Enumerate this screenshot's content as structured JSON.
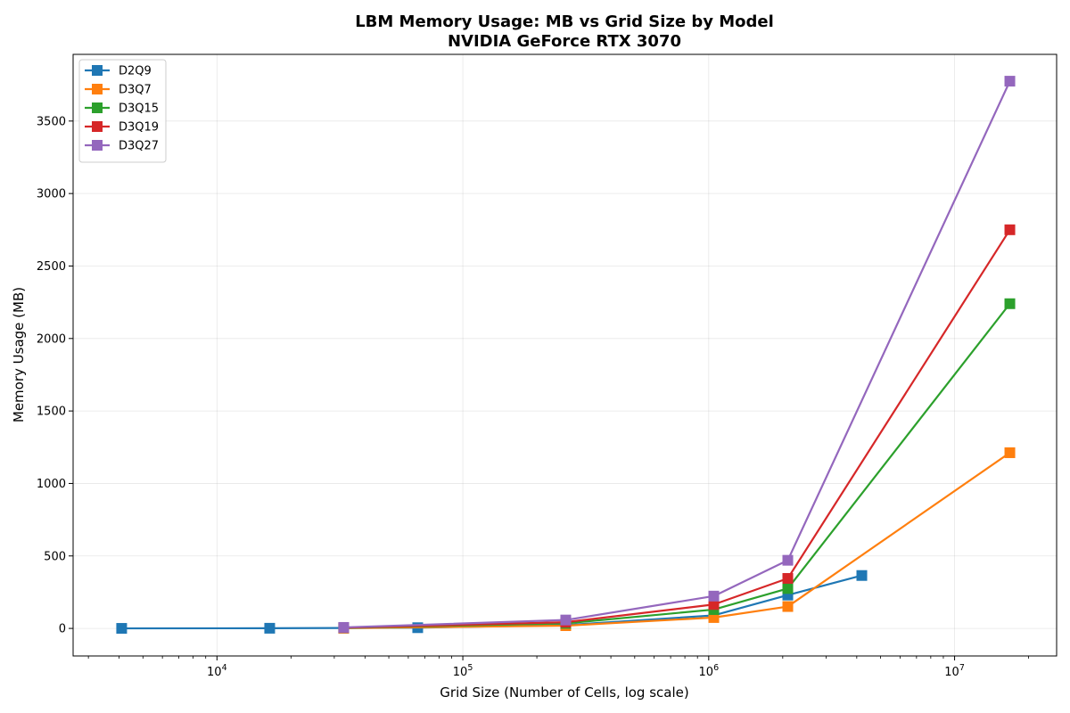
{
  "chart_data": {
    "type": "line",
    "title": "LBM Memory Usage: MB vs Grid Size by Model",
    "subtitle": "NVIDIA GeForce RTX 3070",
    "xlabel": "Grid Size (Number of Cells, log scale)",
    "ylabel": "Memory Usage (MB)",
    "x_scale": "log",
    "xlim": [
      2600,
      26000000
    ],
    "ylim": [
      -190,
      3960
    ],
    "x_ticks": [
      {
        "value": 10000,
        "base": "10",
        "exp": "4"
      },
      {
        "value": 100000,
        "base": "10",
        "exp": "5"
      },
      {
        "value": 1000000,
        "base": "10",
        "exp": "6"
      },
      {
        "value": 10000000,
        "base": "10",
        "exp": "7"
      }
    ],
    "y_ticks": [
      {
        "value": 0,
        "label": "0"
      },
      {
        "value": 500,
        "label": "500"
      },
      {
        "value": 1000,
        "label": "1000"
      },
      {
        "value": 1500,
        "label": "1500"
      },
      {
        "value": 2000,
        "label": "2000"
      },
      {
        "value": 2500,
        "label": "2500"
      },
      {
        "value": 3000,
        "label": "3000"
      },
      {
        "value": 3500,
        "label": "3500"
      }
    ],
    "grid": true,
    "legend_position": "top-left",
    "series": [
      {
        "name": "D2Q9",
        "color": "#1f77b4",
        "points": [
          [
            4096,
            0.3
          ],
          [
            16384,
            1.2
          ],
          [
            65536,
            5
          ],
          [
            262144,
            23
          ],
          [
            1048576,
            90
          ],
          [
            2097152,
            230
          ],
          [
            4194304,
            365
          ]
        ]
      },
      {
        "name": "D3Q7",
        "color": "#ff7f0e",
        "points": [
          [
            32768,
            1.8
          ],
          [
            262144,
            19
          ],
          [
            1048576,
            75
          ],
          [
            2097152,
            151
          ],
          [
            16777216,
            1212
          ]
        ]
      },
      {
        "name": "D3Q15",
        "color": "#2ca02c",
        "points": [
          [
            32768,
            3.8
          ],
          [
            262144,
            35
          ],
          [
            1048576,
            130
          ],
          [
            2097152,
            275
          ],
          [
            16777216,
            2240
          ]
        ]
      },
      {
        "name": "D3Q19",
        "color": "#d62728",
        "points": [
          [
            32768,
            4.8
          ],
          [
            262144,
            43
          ],
          [
            1048576,
            165
          ],
          [
            2097152,
            345
          ],
          [
            16777216,
            2750
          ]
        ]
      },
      {
        "name": "D3Q27",
        "color": "#9467bd",
        "points": [
          [
            32768,
            7
          ],
          [
            262144,
            58
          ],
          [
            1048576,
            223
          ],
          [
            2097152,
            470
          ],
          [
            16777216,
            3775
          ]
        ]
      }
    ]
  }
}
